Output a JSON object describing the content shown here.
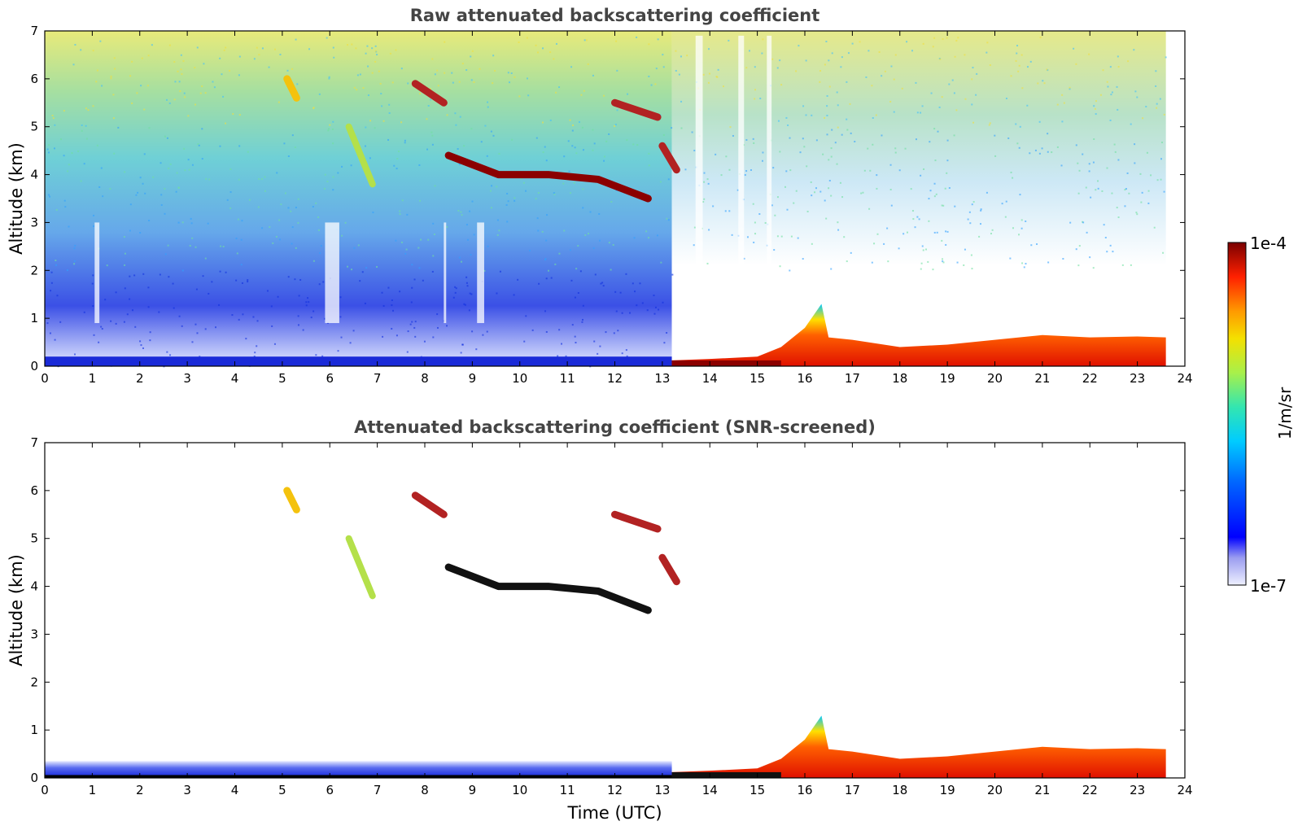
{
  "chart_data": [
    {
      "type": "heatmap",
      "title": "Raw attenuated backscattering coefficient",
      "xlabel": "",
      "ylabel": "Altitude (km)",
      "xlim": [
        0,
        24
      ],
      "ylim": [
        0,
        7
      ],
      "x_ticks": [
        "0",
        "1",
        "2",
        "3",
        "4",
        "5",
        "6",
        "7",
        "8",
        "9",
        "10",
        "11",
        "12",
        "13",
        "14",
        "15",
        "16",
        "17",
        "18",
        "19",
        "20",
        "21",
        "22",
        "23",
        "24"
      ],
      "y_ticks": [
        "0",
        "1",
        "2",
        "3",
        "4",
        "5",
        "6",
        "7"
      ],
      "data_end_time": 23.6,
      "boundary_layer_top_km": [
        [
          0,
          0.12
        ],
        [
          13.2,
          0.12
        ],
        [
          14,
          0.15
        ],
        [
          15,
          0.2
        ],
        [
          15.5,
          0.4
        ],
        [
          16,
          0.8
        ],
        [
          16.35,
          1.3
        ],
        [
          16.5,
          0.6
        ],
        [
          17,
          0.55
        ],
        [
          18,
          0.4
        ],
        [
          19,
          0.45
        ],
        [
          20,
          0.55
        ],
        [
          21,
          0.65
        ],
        [
          22,
          0.6
        ],
        [
          23,
          0.62
        ],
        [
          23.6,
          0.6
        ]
      ],
      "cloud_layers": [
        {
          "time_start": 8.5,
          "time_end": 12.7,
          "altitude_km": [
            4.4,
            4.0,
            4.0,
            3.9,
            3.5
          ],
          "color": "#8b0000"
        },
        {
          "time_start": 7.8,
          "time_end": 8.4,
          "altitude_km": [
            5.9,
            5.5
          ],
          "color": "#b22222"
        },
        {
          "time_start": 12.0,
          "time_end": 12.9,
          "altitude_km": [
            5.5,
            5.2
          ],
          "color": "#b22222"
        },
        {
          "time_start": 13.0,
          "time_end": 13.3,
          "altitude_km": [
            4.6,
            4.1
          ],
          "color": "#b22222"
        },
        {
          "time_start": 6.4,
          "time_end": 6.9,
          "altitude_km": [
            5.0,
            3.8
          ],
          "color": "#b4e04a"
        },
        {
          "time_start": 5.1,
          "time_end": 5.3,
          "altitude_km": [
            6.0,
            5.6
          ],
          "color": "#f4c20d"
        }
      ]
    },
    {
      "type": "heatmap",
      "title": "Attenuated backscattering coefficient (SNR-screened)",
      "xlabel": "Time (UTC)",
      "ylabel": "Altitude (km)",
      "xlim": [
        0,
        24
      ],
      "ylim": [
        0,
        7
      ],
      "x_ticks": [
        "0",
        "1",
        "2",
        "3",
        "4",
        "5",
        "6",
        "7",
        "8",
        "9",
        "10",
        "11",
        "12",
        "13",
        "14",
        "15",
        "16",
        "17",
        "18",
        "19",
        "20",
        "21",
        "22",
        "23",
        "24"
      ],
      "y_ticks": [
        "0",
        "1",
        "2",
        "3",
        "4",
        "5",
        "6",
        "7"
      ],
      "data_end_time": 23.6,
      "screened_low_layer_top_km": 0.35,
      "colorbar": {
        "label": "1/m/sr",
        "min_label": "1e-7",
        "max_label": "1e-4",
        "scale": "log",
        "range": [
          1e-07,
          0.0001
        ]
      }
    }
  ]
}
